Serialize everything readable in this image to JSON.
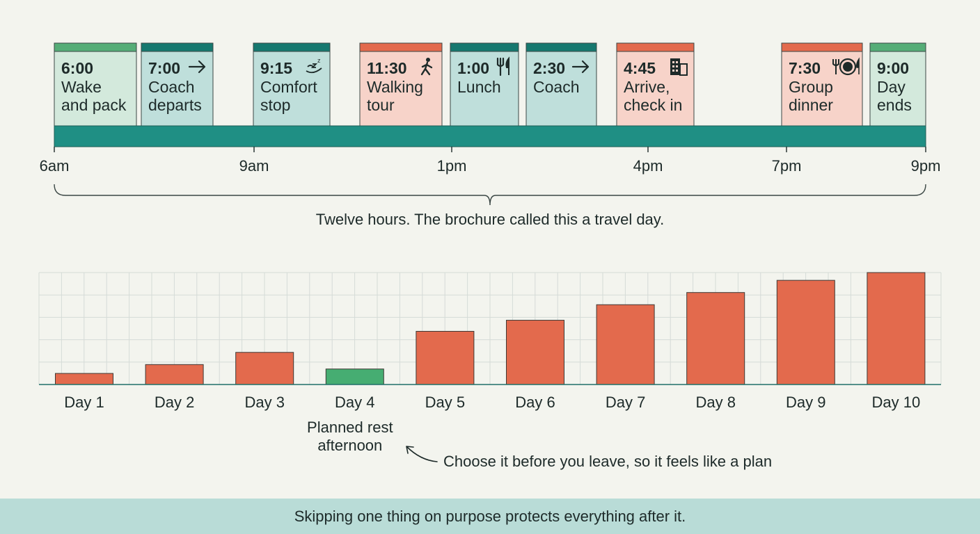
{
  "timeline": {
    "ticks": [
      "6am",
      "9am",
      "1pm",
      "4pm",
      "7pm",
      "9pm"
    ],
    "brace_caption": "Twelve hours. The brochure called this a travel day.",
    "events": [
      {
        "time": "6:00",
        "lines": [
          "Wake",
          "and pack"
        ],
        "kind": "green",
        "icon": ""
      },
      {
        "time": "7:00",
        "lines": [
          "Coach",
          "departs"
        ],
        "kind": "teal",
        "icon": "arrow-right-icon"
      },
      {
        "time": "9:15",
        "lines": [
          "Comfort",
          "stop"
        ],
        "kind": "teal",
        "icon": "sleep-icon"
      },
      {
        "time": "11:30",
        "lines": [
          "Walking",
          "tour"
        ],
        "kind": "red",
        "icon": "walking-icon"
      },
      {
        "time": "1:00",
        "lines": [
          "Lunch"
        ],
        "kind": "teal",
        "icon": "fork-knife-icon"
      },
      {
        "time": "2:30",
        "lines": [
          "Coach"
        ],
        "kind": "teal",
        "icon": "arrow-right-icon"
      },
      {
        "time": "4:45",
        "lines": [
          "Arrive,",
          "check in"
        ],
        "kind": "red",
        "icon": "hotel-icon"
      },
      {
        "time": "7:30",
        "lines": [
          "Group",
          "dinner"
        ],
        "kind": "red",
        "icon": "dinner-icon"
      },
      {
        "time": "9:00",
        "lines": [
          "Day",
          "ends"
        ],
        "kind": "green",
        "icon": ""
      }
    ]
  },
  "chart_data": {
    "type": "bar",
    "categories": [
      "Day 1",
      "Day 2",
      "Day 3",
      "Day 4",
      "Day 5",
      "Day 6",
      "Day 7",
      "Day 8",
      "Day 9",
      "Day 10"
    ],
    "values": [
      1,
      1.8,
      2.9,
      1.4,
      4.8,
      5.8,
      7.2,
      8.3,
      9.4,
      10.1
    ],
    "highlight_index": 3,
    "colors": {
      "bar": "#e36a4d",
      "highlight": "#46ad72"
    },
    "annotation_label": "Planned rest afternoon",
    "annotation_lines": [
      "Planned rest",
      "afternoon"
    ],
    "annotation_note": "Choose it before you leave, so it feels like a plan",
    "ylim": [
      0,
      10.1
    ],
    "grid": true
  },
  "footer": {
    "text": "Skipping one thing on purpose protects everything after it."
  },
  "colors": {
    "teal": "#1f8f84",
    "teal_card": "#bfdfdb",
    "teal_strip": "#16786f",
    "green_card": "#d3e9dc",
    "green_strip": "#55ad77",
    "red_card": "#f7d3c9",
    "red_strip": "#e36a4d",
    "footer_bg": "#b9dcd7"
  }
}
